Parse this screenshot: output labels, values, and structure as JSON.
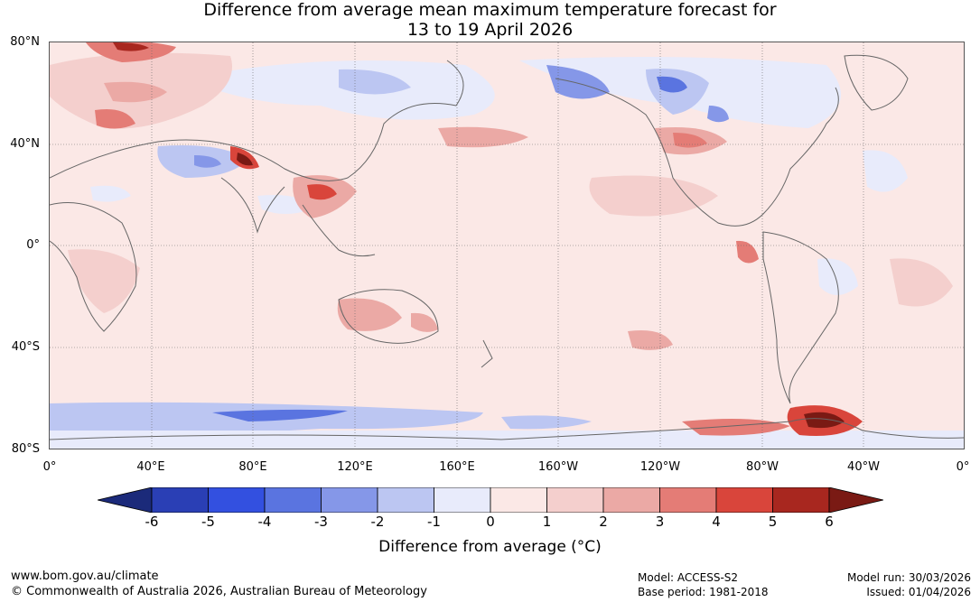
{
  "title": {
    "line1": "Difference from average mean maximum temperature forecast for",
    "line2": "13 to 19 April 2026"
  },
  "axes": {
    "lat_labels": [
      "80°N",
      "40°N",
      "0°",
      "40°S",
      "80°S"
    ],
    "lon_labels": [
      "0°",
      "40°E",
      "80°E",
      "120°E",
      "160°E",
      "160°W",
      "120°W",
      "80°W",
      "40°W",
      "0°"
    ]
  },
  "colorbar": {
    "ticks": [
      "-6",
      "-5",
      "-4",
      "-3",
      "-2",
      "-1",
      "0",
      "1",
      "2",
      "3",
      "4",
      "5",
      "6"
    ],
    "colors": [
      "#1b2a7a",
      "#2a3fb5",
      "#3350e0",
      "#5a74e0",
      "#8597e8",
      "#bcc6f2",
      "#e8ebfb",
      "#fbe8e6",
      "#f4cfcd",
      "#eba9a5",
      "#e47c76",
      "#d9453b",
      "#a8271f",
      "#7a1a14"
    ],
    "label": "Difference from average (°C)"
  },
  "footer": {
    "website": "www.bom.gov.au/climate",
    "copyright": "© Commonwealth of Australia 2026, Australian Bureau of Meteorology",
    "model": "Model: ACCESS-S2",
    "base_period": "Base period: 1981-2018",
    "model_run": "Model run: 30/03/2026",
    "issued": "Issued: 01/04/2026"
  }
}
